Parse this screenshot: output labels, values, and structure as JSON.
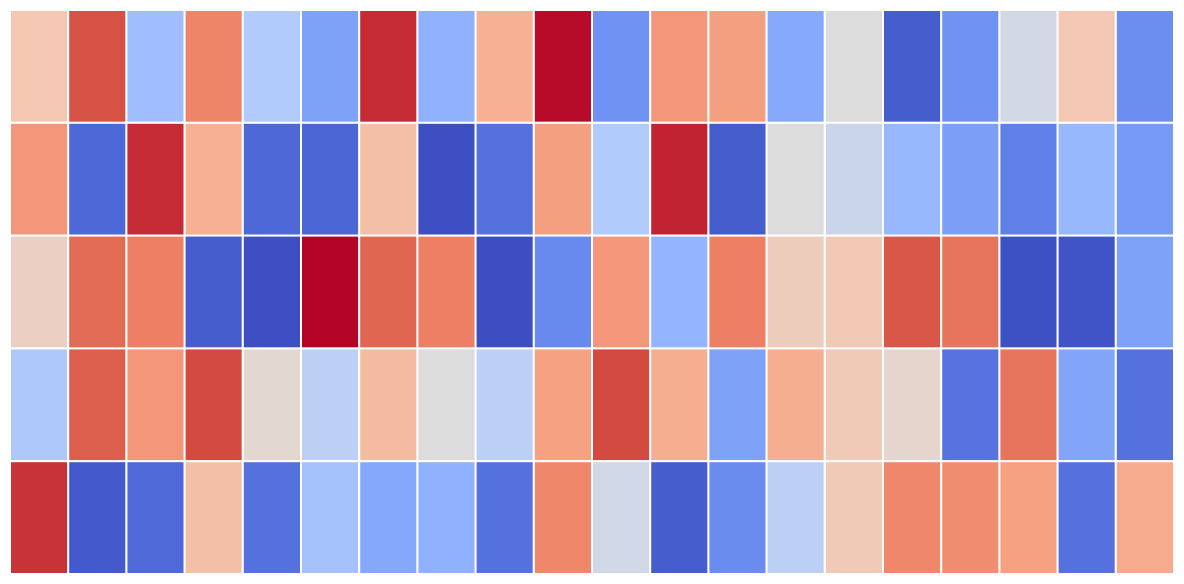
{
  "chart_data": {
    "type": "heatmap",
    "cmap": "coolwarm",
    "clim": [
      -1,
      1
    ],
    "values": [
      [
        0.2,
        0.8,
        -0.3,
        0.6,
        -0.2,
        -0.5,
        0.9,
        -0.4,
        0.35,
        0.98,
        -0.6,
        0.5,
        0.45,
        -0.45,
        0,
        -0.9,
        -0.6,
        -0.05,
        0.2,
        -0.62
      ],
      [
        0.5,
        -0.83,
        0.9,
        0.35,
        -0.83,
        -0.84,
        0.25,
        -0.98,
        -0.78,
        0.45,
        -0.2,
        0.92,
        -0.9,
        0,
        -0.08,
        -0.35,
        -0.52,
        -0.7,
        -0.35,
        -0.55
      ],
      [
        0.12,
        0.7,
        0.62,
        -0.9,
        -0.98,
        1,
        0.72,
        0.62,
        -0.99,
        -0.65,
        0.5,
        -0.37,
        0.62,
        0.15,
        0.18,
        0.78,
        0.66,
        -0.97,
        -0.95,
        -0.5
      ],
      [
        -0.22,
        0.75,
        0.5,
        0.82,
        0.05,
        -0.15,
        0.28,
        0,
        -0.15,
        0.44,
        0.82,
        0.36,
        -0.5,
        0.36,
        0.17,
        0.07,
        -0.77,
        0.66,
        -0.48,
        -0.78
      ],
      [
        0.88,
        -0.92,
        -0.82,
        0.25,
        -0.78,
        -0.27,
        -0.46,
        -0.4,
        -0.78,
        0.58,
        -0.06,
        -0.9,
        -0.63,
        -0.15,
        0.17,
        0.58,
        0.55,
        0.44,
        -0.78,
        0.38
      ]
    ]
  }
}
